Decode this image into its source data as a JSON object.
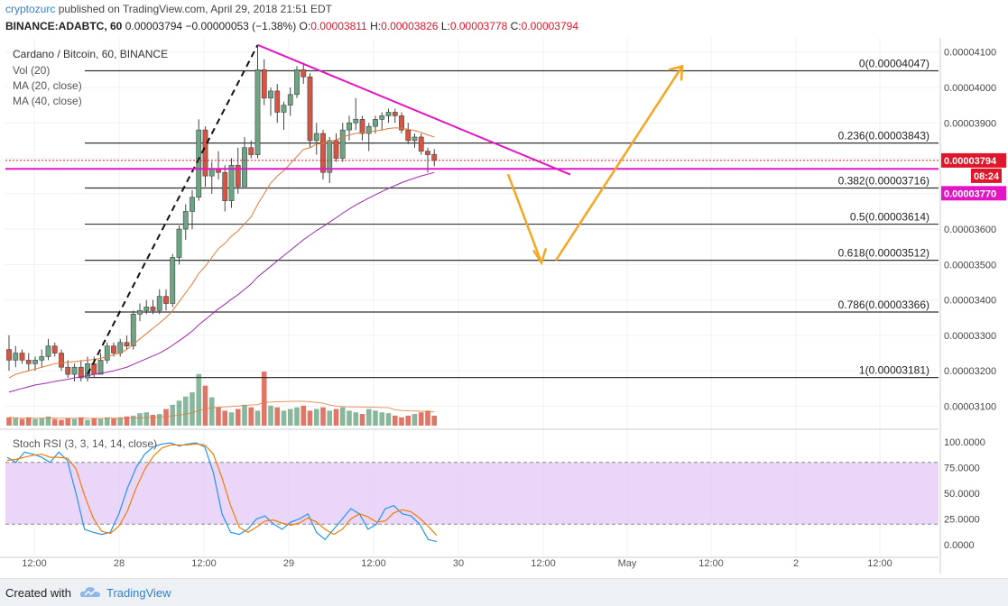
{
  "header": {
    "author": "cryptozurc",
    "published": "published on TradingView.com, April 29, 2018 21:51 EDT",
    "symbol": "BINANCE:ADABTC, 60",
    "last": "0.00003794",
    "change": "−0.00000053 (−1.38%)",
    "o_label": "O:",
    "o": "0.00003811",
    "h_label": "H:",
    "h": "0.00003826",
    "l_label": "L:",
    "l": "0.00003778",
    "c_label": "C:",
    "c": "0.00003794"
  },
  "legend": {
    "title": "Cardano / Bitcoin, 60, BINANCE",
    "vol": "Vol (20)",
    "ma20": "MA (20, close)",
    "ma40": "MA (40, close)"
  },
  "rsi_label": "Stoch RSI (3, 3, 14, 14, close)",
  "footer": {
    "created": "Created with",
    "brand": "TradingView"
  },
  "colors": {
    "up": "#6ba583",
    "down": "#d75442",
    "fib": "#333333",
    "magenta": "#e316c6",
    "arrow": "#f5a623",
    "ma20": "#e07b39",
    "ma40": "#9c27b0",
    "k": "#2196f3",
    "d": "#f57c00",
    "rsi_band": "#e1c8f5"
  },
  "chart_data": [
    {
      "type": "candlestick",
      "title": "Cardano / Bitcoin, 60, BINANCE",
      "ylim": [
        3.04e-05,
        4.14e-05
      ],
      "yticks": [
        "0.00004100",
        "0.00004000",
        "0.00003900",
        "0.00003800",
        "0.00003700",
        "0.00003600",
        "0.00003500",
        "0.00003400",
        "0.00003300",
        "0.00003200",
        "0.00003100"
      ],
      "xticks": [
        "12:00",
        "28",
        "12:00",
        "29",
        "12:00",
        "30",
        "12:00",
        "May",
        "12:00",
        "2",
        "12:00"
      ],
      "price_labels": [
        {
          "text": "0.00003794",
          "color": "#e0162b"
        },
        {
          "text": "08:24",
          "color": "#e0162b"
        },
        {
          "text": "0.00003770",
          "color": "#e316c6"
        }
      ],
      "fib_levels": [
        {
          "label": "0(0.00004047)",
          "value": 4.047e-05
        },
        {
          "label": "0.236(0.00003843)",
          "value": 3.843e-05
        },
        {
          "label": "0.382(0.00003716)",
          "value": 3.716e-05
        },
        {
          "label": "0.5(0.00003614)",
          "value": 3.614e-05
        },
        {
          "label": "0.618(0.00003512)",
          "value": 3.512e-05
        },
        {
          "label": "0.786(0.00003366)",
          "value": 3.366e-05
        },
        {
          "label": "1(0.00003181)",
          "value": 3.181e-05
        }
      ],
      "support_line": 3.77e-05,
      "candles": [
        [
          3.26e-05,
          3.3e-05,
          3.2e-05,
          3.23e-05
        ],
        [
          3.23e-05,
          3.27e-05,
          3.21e-05,
          3.25e-05
        ],
        [
          3.25e-05,
          3.26e-05,
          3.22e-05,
          3.23e-05
        ],
        [
          3.23e-05,
          3.25e-05,
          3.2e-05,
          3.22e-05
        ],
        [
          3.22e-05,
          3.24e-05,
          3.2e-05,
          3.23e-05
        ],
        [
          3.23e-05,
          3.26e-05,
          3.21e-05,
          3.24e-05
        ],
        [
          3.24e-05,
          3.29e-05,
          3.23e-05,
          3.27e-05
        ],
        [
          3.27e-05,
          3.28e-05,
          3.24e-05,
          3.25e-05
        ],
        [
          3.25e-05,
          3.26e-05,
          3.2e-05,
          3.21e-05
        ],
        [
          3.21e-05,
          3.23e-05,
          3.18e-05,
          3.19e-05
        ],
        [
          3.19e-05,
          3.22e-05,
          3.17e-05,
          3.21e-05
        ],
        [
          3.21e-05,
          3.23e-05,
          3.17e-05,
          3.18e-05
        ],
        [
          3.18e-05,
          3.24e-05,
          3.17e-05,
          3.22e-05
        ],
        [
          3.22e-05,
          3.24e-05,
          3.18e-05,
          3.19e-05
        ],
        [
          3.19e-05,
          3.25e-05,
          3.19e-05,
          3.23e-05
        ],
        [
          3.23e-05,
          3.28e-05,
          3.22e-05,
          3.27e-05
        ],
        [
          3.27e-05,
          3.28e-05,
          3.24e-05,
          3.25e-05
        ],
        [
          3.25e-05,
          3.29e-05,
          3.24e-05,
          3.28e-05
        ],
        [
          3.28e-05,
          3.3e-05,
          3.26e-05,
          3.27e-05
        ],
        [
          3.27e-05,
          3.37e-05,
          3.26e-05,
          3.36e-05
        ],
        [
          3.36e-05,
          3.39e-05,
          3.34e-05,
          3.37e-05
        ],
        [
          3.37e-05,
          3.4e-05,
          3.36e-05,
          3.38e-05
        ],
        [
          3.38e-05,
          3.4e-05,
          3.36e-05,
          3.37e-05
        ],
        [
          3.37e-05,
          3.43e-05,
          3.36e-05,
          3.41e-05
        ],
        [
          3.41e-05,
          3.43e-05,
          3.37e-05,
          3.39e-05
        ],
        [
          3.39e-05,
          3.53e-05,
          3.38e-05,
          3.52e-05
        ],
        [
          3.52e-05,
          3.61e-05,
          3.5e-05,
          3.6e-05
        ],
        [
          3.6e-05,
          3.67e-05,
          3.57e-05,
          3.65e-05
        ],
        [
          3.65e-05,
          3.71e-05,
          3.6e-05,
          3.69e-05
        ],
        [
          3.69e-05,
          3.91e-05,
          3.68e-05,
          3.88e-05
        ],
        [
          3.88e-05,
          3.89e-05,
          3.72e-05,
          3.75e-05
        ],
        [
          3.75e-05,
          3.79e-05,
          3.7e-05,
          3.77e-05
        ],
        [
          3.77e-05,
          3.82e-05,
          3.74e-05,
          3.76e-05
        ],
        [
          3.76e-05,
          3.78e-05,
          3.65e-05,
          3.68e-05
        ],
        [
          3.68e-05,
          3.8e-05,
          3.66e-05,
          3.78e-05
        ],
        [
          3.78e-05,
          3.83e-05,
          3.7e-05,
          3.72e-05
        ],
        [
          3.72e-05,
          3.86e-05,
          3.72e-05,
          3.83e-05
        ],
        [
          3.83e-05,
          3.85e-05,
          3.8e-05,
          3.81e-05
        ],
        [
          3.81e-05,
          4.12e-05,
          3.8e-05,
          4.05e-05
        ],
        [
          4.05e-05,
          4.08e-05,
          3.95e-05,
          3.97e-05
        ],
        [
          3.97e-05,
          4e-05,
          3.92e-05,
          3.99e-05
        ],
        [
          3.99e-05,
          4.01e-05,
          3.9e-05,
          3.93e-05
        ],
        [
          3.93e-05,
          3.96e-05,
          3.88e-05,
          3.95e-05
        ],
        [
          3.95e-05,
          4e-05,
          3.92e-05,
          3.98e-05
        ],
        [
          3.98e-05,
          4.06e-05,
          3.97e-05,
          4.05e-05
        ],
        [
          4.05e-05,
          4.07e-05,
          4.01e-05,
          4.03e-05
        ],
        [
          4.03e-05,
          4.04e-05,
          3.83e-05,
          3.85e-05
        ],
        [
          3.85e-05,
          3.9e-05,
          3.81e-05,
          3.87e-05
        ],
        [
          3.87e-05,
          3.88e-05,
          3.74e-05,
          3.76e-05
        ],
        [
          3.76e-05,
          3.86e-05,
          3.73e-05,
          3.85e-05
        ],
        [
          3.85e-05,
          3.87e-05,
          3.79e-05,
          3.8e-05
        ],
        [
          3.8e-05,
          3.9e-05,
          3.79e-05,
          3.88e-05
        ],
        [
          3.88e-05,
          3.92e-05,
          3.85e-05,
          3.9e-05
        ],
        [
          3.9e-05,
          3.97e-05,
          3.88e-05,
          3.91e-05
        ],
        [
          3.91e-05,
          3.92e-05,
          3.85e-05,
          3.87e-05
        ],
        [
          3.87e-05,
          3.9e-05,
          3.82e-05,
          3.89e-05
        ],
        [
          3.89e-05,
          3.92e-05,
          3.87e-05,
          3.91e-05
        ],
        [
          3.91e-05,
          3.93e-05,
          3.88e-05,
          3.92e-05
        ],
        [
          3.92e-05,
          3.94e-05,
          3.9e-05,
          3.93e-05
        ],
        [
          3.93e-05,
          3.94e-05,
          3.9e-05,
          3.92e-05
        ],
        [
          3.92e-05,
          3.93e-05,
          3.87e-05,
          3.88e-05
        ],
        [
          3.88e-05,
          3.9e-05,
          3.84e-05,
          3.85e-05
        ],
        [
          3.85e-05,
          3.87e-05,
          3.83e-05,
          3.86e-05
        ],
        [
          3.86e-05,
          3.87e-05,
          3.81e-05,
          3.82e-05
        ],
        [
          3.82e-05,
          3.83e-05,
          3.76e-05,
          3.81e-05
        ],
        [
          3.811e-05,
          3.826e-05,
          3.778e-05,
          3.794e-05
        ]
      ],
      "volume": [
        10,
        9,
        8,
        10,
        8,
        9,
        11,
        8,
        7,
        9,
        8,
        10,
        7,
        9,
        8,
        10,
        9,
        10,
        11,
        12,
        15,
        16,
        13,
        14,
        20,
        25,
        30,
        35,
        40,
        62,
        48,
        34,
        22,
        18,
        16,
        20,
        25,
        22,
        18,
        65,
        24,
        22,
        18,
        20,
        22,
        24,
        18,
        20,
        22,
        18,
        20,
        22,
        18,
        16,
        14,
        20,
        18,
        16,
        15,
        12,
        10,
        12,
        14,
        16,
        18,
        12
      ],
      "ma20": [
        3.18e-05,
        3.19e-05,
        3.195e-05,
        3.2e-05,
        3.205e-05,
        3.21e-05,
        3.215e-05,
        3.22e-05,
        3.222e-05,
        3.224e-05,
        3.226e-05,
        3.228e-05,
        3.23e-05,
        3.232e-05,
        3.235e-05,
        3.24e-05,
        3.245e-05,
        3.25e-05,
        3.26e-05,
        3.275e-05,
        3.29e-05,
        3.305e-05,
        3.32e-05,
        3.335e-05,
        3.35e-05,
        3.37e-05,
        3.395e-05,
        3.42e-05,
        3.445e-05,
        3.475e-05,
        3.495e-05,
        3.52e-05,
        3.545e-05,
        3.56e-05,
        3.58e-05,
        3.595e-05,
        3.615e-05,
        3.635e-05,
        3.67e-05,
        3.7e-05,
        3.73e-05,
        3.75e-05,
        3.765e-05,
        3.785e-05,
        3.805e-05,
        3.825e-05,
        3.83e-05,
        3.84e-05,
        3.842e-05,
        3.848e-05,
        3.852e-05,
        3.86e-05,
        3.866e-05,
        3.87e-05,
        3.872e-05,
        3.875e-05,
        3.877e-05,
        3.88e-05,
        3.884e-05,
        3.886e-05,
        3.885e-05,
        3.882e-05,
        3.878e-05,
        3.873e-05,
        3.866e-05,
        3.86e-05
      ],
      "ma40": [
        3.14e-05,
        3.145e-05,
        3.15e-05,
        3.155e-05,
        3.16e-05,
        3.163e-05,
        3.166e-05,
        3.17e-05,
        3.173e-05,
        3.176e-05,
        3.18e-05,
        3.183e-05,
        3.186e-05,
        3.19e-05,
        3.193e-05,
        3.196e-05,
        3.2e-05,
        3.205e-05,
        3.21e-05,
        3.218e-05,
        3.226e-05,
        3.234e-05,
        3.242e-05,
        3.25e-05,
        3.26e-05,
        3.272e-05,
        3.285e-05,
        3.298e-05,
        3.312e-05,
        3.33e-05,
        3.345e-05,
        3.36e-05,
        3.375e-05,
        3.388e-05,
        3.402e-05,
        3.415e-05,
        3.43e-05,
        3.445e-05,
        3.465e-05,
        3.48e-05,
        3.495e-05,
        3.51e-05,
        3.525e-05,
        3.54e-05,
        3.555e-05,
        3.57e-05,
        3.583e-05,
        3.596e-05,
        3.607e-05,
        3.62e-05,
        3.632e-05,
        3.645e-05,
        3.657e-05,
        3.668e-05,
        3.678e-05,
        3.688e-05,
        3.697e-05,
        3.706e-05,
        3.715e-05,
        3.723e-05,
        3.731e-05,
        3.738e-05,
        3.744e-05,
        3.75e-05,
        3.755e-05,
        3.76e-05
      ]
    },
    {
      "type": "line",
      "title": "Stoch RSI (3, 3, 14, 14, close)",
      "ylim": [
        0,
        100
      ],
      "yticks": [
        "100.0000",
        "75.0000",
        "50.0000",
        "25.0000",
        "0.0000"
      ],
      "band": [
        20,
        80
      ],
      "series": [
        {
          "name": "K",
          "values": [
            85,
            80,
            90,
            88,
            85,
            80,
            90,
            82,
            50,
            15,
            12,
            10,
            12,
            30,
            55,
            75,
            88,
            95,
            98,
            99,
            96,
            98,
            99,
            95,
            70,
            30,
            12,
            10,
            15,
            25,
            28,
            20,
            15,
            22,
            25,
            30,
            12,
            5,
            15,
            25,
            35,
            30,
            15,
            20,
            35,
            38,
            30,
            28,
            20,
            5,
            3
          ]
        },
        {
          "name": "D",
          "values": [
            82,
            83,
            85,
            87,
            88,
            85,
            85,
            84,
            74,
            48,
            26,
            13,
            11,
            18,
            33,
            55,
            73,
            86,
            94,
            97,
            97,
            97,
            98,
            97,
            88,
            65,
            38,
            17,
            12,
            17,
            23,
            24,
            21,
            19,
            21,
            26,
            22,
            15,
            10,
            15,
            25,
            30,
            27,
            22,
            23,
            31,
            34,
            32,
            26,
            18,
            9
          ]
        }
      ]
    }
  ]
}
